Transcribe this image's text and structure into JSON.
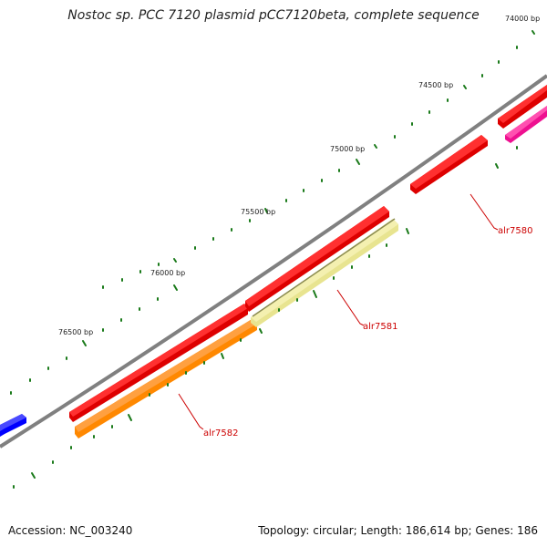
{
  "header": {
    "title": "Nostoc sp. PCC 7120 plasmid pCC7120beta, complete sequence"
  },
  "footer": {
    "accession": "Accession: NC_003240",
    "summary": "Topology: circular; Length: 186,614 bp; Genes: 186"
  },
  "map": {
    "tick_labels": [
      "74000 bp",
      "74500 bp",
      "75000 bp",
      "75500 bp",
      "76000 bp",
      "76500 bp"
    ],
    "gene_labels": [
      "alr7580",
      "alr7581",
      "alr7582"
    ],
    "colors": {
      "backbone": "#808080",
      "gene_red": "#ee0000",
      "gene_pale_yellow": "#f0eca0",
      "gene_orange": "#ff8c00",
      "gene_magenta": "#ff1493",
      "gene_blue": "#0000ff",
      "tick_green": "#1a7a1a",
      "label_red": "#cc0000"
    }
  }
}
